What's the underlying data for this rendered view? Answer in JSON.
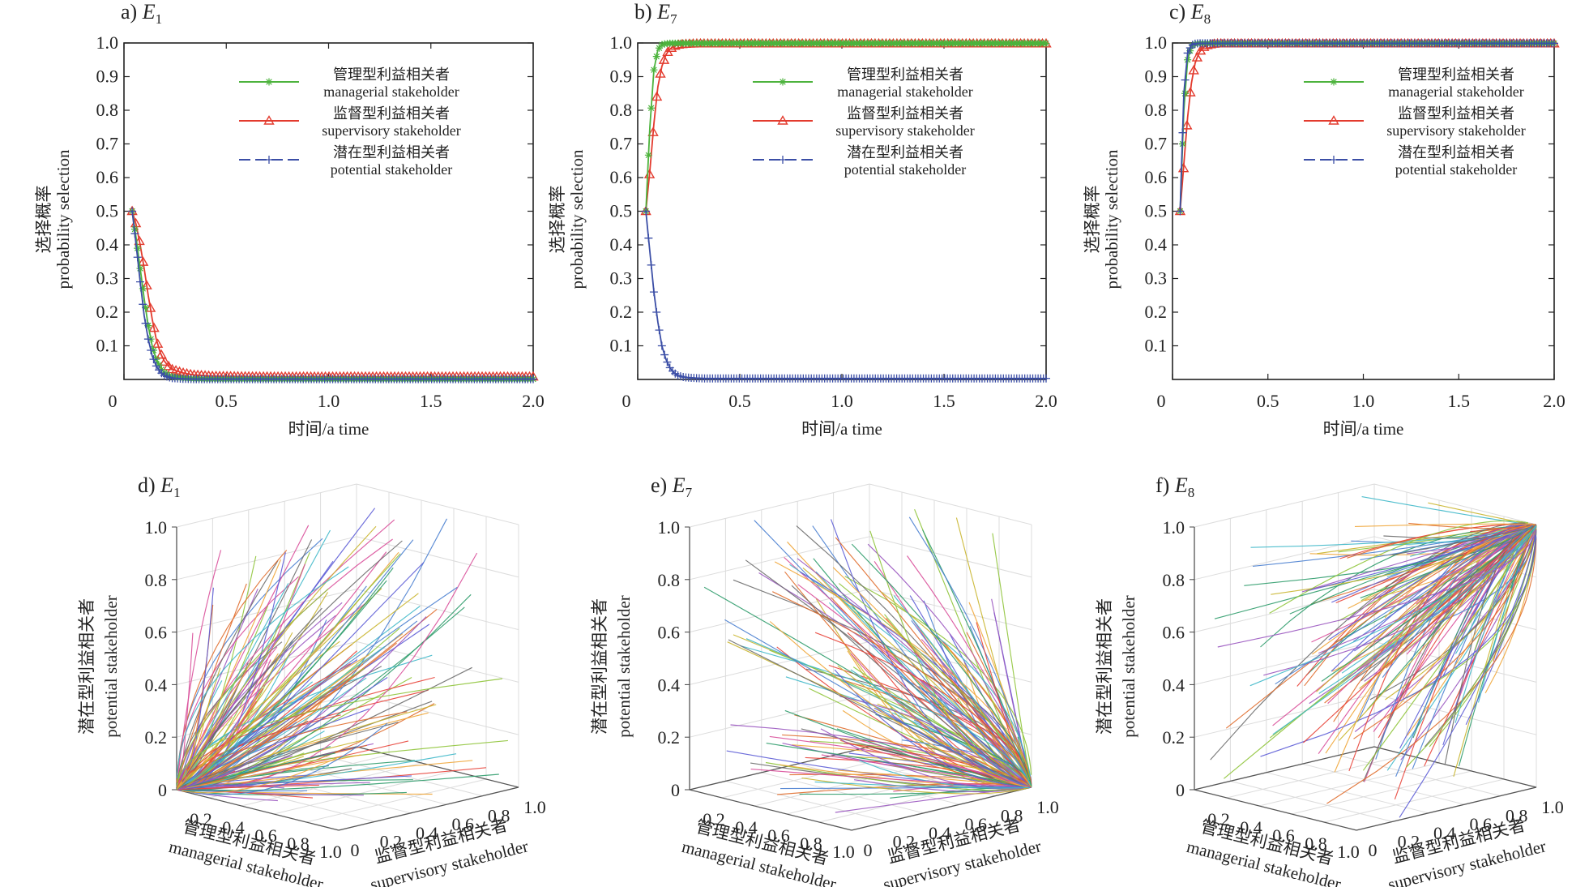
{
  "colors": {
    "managerial": "#4db33d",
    "supervisory": "#e33b2e",
    "potential": "#3b4ea6",
    "axis": "#222222",
    "grid": "#dcdcdc"
  },
  "legend": [
    {
      "zh": "管理型利益相关者",
      "en": "managerial stakeholder",
      "marker": "asterisk"
    },
    {
      "zh": "监督型利益相关者",
      "en": "supervisory stakeholder",
      "marker": "triangle"
    },
    {
      "zh": "潜在型利益相关者",
      "en": "potential stakeholder",
      "marker": "plus"
    }
  ],
  "chart_data": [
    {
      "type": "line",
      "label": "a)",
      "sub": "1",
      "xlabel": "时间/a time",
      "ylabel_zh": "选择概率",
      "ylabel_en": "probability selection",
      "xlim": [
        0,
        2.0
      ],
      "ylim": [
        0,
        1.0
      ],
      "xticks": [
        "0",
        "0.5",
        "1.0",
        "1.5",
        "2.0"
      ],
      "yticks": [
        "0.1",
        "0.2",
        "0.3",
        "0.4",
        "0.5",
        "0.6",
        "0.7",
        "0.8",
        "0.9",
        "1.0"
      ],
      "x": [
        0,
        0.02,
        0.04,
        0.06,
        0.08,
        0.1,
        0.12,
        0.14,
        0.16,
        0.18,
        0.2,
        0.25,
        0.3,
        0.4,
        0.5,
        0.7,
        1.0,
        1.5,
        2.0
      ],
      "series": [
        {
          "key": "managerial",
          "values": [
            0.5,
            0.42,
            0.33,
            0.24,
            0.16,
            0.1,
            0.06,
            0.035,
            0.02,
            0.012,
            0.008,
            0.004,
            0.002,
            0.001,
            0.001,
            0.001,
            0.001,
            0.001,
            0.001
          ]
        },
        {
          "key": "supervisory",
          "values": [
            0.5,
            0.46,
            0.4,
            0.33,
            0.25,
            0.18,
            0.12,
            0.08,
            0.055,
            0.04,
            0.03,
            0.02,
            0.014,
            0.01,
            0.009,
            0.008,
            0.008,
            0.008,
            0.008
          ]
        },
        {
          "key": "potential",
          "values": [
            0.5,
            0.4,
            0.29,
            0.19,
            0.12,
            0.07,
            0.04,
            0.022,
            0.012,
            0.007,
            0.004,
            0.002,
            0.001,
            0.001,
            0.001,
            0.001,
            0.001,
            0.001,
            0.001
          ]
        }
      ]
    },
    {
      "type": "line",
      "label": "b)",
      "sub": "7",
      "xlabel": "时间/a time",
      "ylabel_zh": "选择概率",
      "ylabel_en": "probability selection",
      "xlim": [
        0,
        2.0
      ],
      "ylim": [
        0,
        1.0
      ],
      "xticks": [
        "0",
        "0.5",
        "1.0",
        "1.5",
        "2.0"
      ],
      "yticks": [
        "0.1",
        "0.2",
        "0.3",
        "0.4",
        "0.5",
        "0.6",
        "0.7",
        "0.8",
        "0.9",
        "1.0"
      ],
      "x": [
        0,
        0.02,
        0.04,
        0.06,
        0.08,
        0.1,
        0.12,
        0.14,
        0.16,
        0.18,
        0.2,
        0.25,
        0.3,
        0.4,
        0.5,
        0.7,
        1.0,
        1.5,
        2.0
      ],
      "series": [
        {
          "key": "managerial",
          "values": [
            0.5,
            0.75,
            0.92,
            0.98,
            0.995,
            0.998,
            0.999,
            0.999,
            0.999,
            0.999,
            0.999,
            0.999,
            0.999,
            0.999,
            0.999,
            0.999,
            0.999,
            0.999,
            0.999
          ]
        },
        {
          "key": "supervisory",
          "values": [
            0.5,
            0.62,
            0.76,
            0.87,
            0.93,
            0.965,
            0.982,
            0.99,
            0.994,
            0.996,
            0.997,
            0.998,
            0.998,
            0.998,
            0.998,
            0.998,
            0.998,
            0.998,
            0.998
          ]
        },
        {
          "key": "potential",
          "values": [
            0.5,
            0.38,
            0.26,
            0.17,
            0.1,
            0.06,
            0.035,
            0.02,
            0.012,
            0.008,
            0.006,
            0.004,
            0.003,
            0.003,
            0.003,
            0.003,
            0.003,
            0.003,
            0.003
          ]
        }
      ]
    },
    {
      "type": "line",
      "label": "c)",
      "sub": "8",
      "xlabel": "时间/a time",
      "ylabel_zh": "选择概率",
      "ylabel_en": "probability selection",
      "xlim": [
        0,
        2.0
      ],
      "ylim": [
        0,
        1.0
      ],
      "xticks": [
        "0",
        "0.5",
        "1.0",
        "1.5",
        "2.0"
      ],
      "yticks": [
        "0.1",
        "0.2",
        "0.3",
        "0.4",
        "0.5",
        "0.6",
        "0.7",
        "0.8",
        "0.9",
        "1.0"
      ],
      "x": [
        0,
        0.02,
        0.04,
        0.06,
        0.08,
        0.1,
        0.12,
        0.14,
        0.16,
        0.18,
        0.2,
        0.25,
        0.3,
        0.4,
        0.5,
        0.7,
        1.0,
        1.5,
        2.0
      ],
      "series": [
        {
          "key": "managerial",
          "values": [
            0.5,
            0.8,
            0.95,
            0.99,
            0.997,
            0.999,
            0.999,
            0.999,
            0.999,
            0.999,
            0.999,
            0.999,
            0.999,
            0.999,
            0.999,
            0.999,
            0.999,
            0.999,
            0.999
          ]
        },
        {
          "key": "supervisory",
          "values": [
            0.5,
            0.64,
            0.78,
            0.88,
            0.94,
            0.97,
            0.985,
            0.992,
            0.995,
            0.997,
            0.998,
            0.998,
            0.998,
            0.998,
            0.998,
            0.998,
            0.998,
            0.998,
            0.998
          ]
        },
        {
          "key": "potential",
          "values": [
            0.5,
            0.85,
            0.97,
            0.993,
            0.998,
            0.999,
            0.999,
            0.999,
            0.999,
            0.999,
            0.999,
            0.999,
            0.999,
            0.999,
            0.999,
            0.999,
            0.999,
            0.999,
            0.999
          ]
        }
      ]
    },
    {
      "type": "line3d",
      "label": "d)",
      "sub": "1",
      "behavior": "converge-origin",
      "xlabel_zh": "管理型利益相关者",
      "xlabel_en": "managerial stakeholder",
      "ylabel_zh": "监督型利益相关者",
      "ylabel_en": "supervisory stakeholder",
      "zlabel_zh": "潜在型利益相关者",
      "zlabel_en": "potential stakeholder",
      "xticks": [
        "0.2",
        "0.4",
        "0.6",
        "0.8",
        "1.0"
      ],
      "yticks": [
        "0",
        "0.2",
        "0.4",
        "0.6",
        "0.8",
        "1.0"
      ],
      "zticks": [
        "0",
        "0.2",
        "0.4",
        "0.6",
        "0.8",
        "1.0"
      ]
    },
    {
      "type": "line3d",
      "label": "e)",
      "sub": "7",
      "behavior": "converge-x1y1z0",
      "xlabel_zh": "管理型利益相关者",
      "xlabel_en": "managerial stakeholder",
      "ylabel_zh": "监督型利益相关者",
      "ylabel_en": "supervisory stakeholder",
      "zlabel_zh": "潜在型利益相关者",
      "zlabel_en": "potential stakeholder",
      "xticks": [
        "0.2",
        "0.4",
        "0.6",
        "0.8",
        "1.0"
      ],
      "yticks": [
        "0",
        "0.2",
        "0.4",
        "0.6",
        "0.8",
        "1.0"
      ],
      "zticks": [
        "0",
        "0.2",
        "0.4",
        "0.6",
        "0.8",
        "1.0"
      ]
    },
    {
      "type": "line3d",
      "label": "f)",
      "sub": "8",
      "behavior": "converge-x1y1z1",
      "xlabel_zh": "管理型利益相关者",
      "xlabel_en": "managerial stakeholder",
      "ylabel_zh": "监督型利益相关者",
      "ylabel_en": "supervisory stakeholder",
      "zlabel_zh": "潜在型利益相关者",
      "zlabel_en": "potential stakeholder",
      "xticks": [
        "0.2",
        "0.4",
        "0.6",
        "0.8",
        "1.0"
      ],
      "yticks": [
        "0",
        "0.2",
        "0.4",
        "0.6",
        "0.8",
        "1.0"
      ],
      "zticks": [
        "0",
        "0.2",
        "0.4",
        "0.6",
        "0.8",
        "1.0"
      ]
    }
  ]
}
